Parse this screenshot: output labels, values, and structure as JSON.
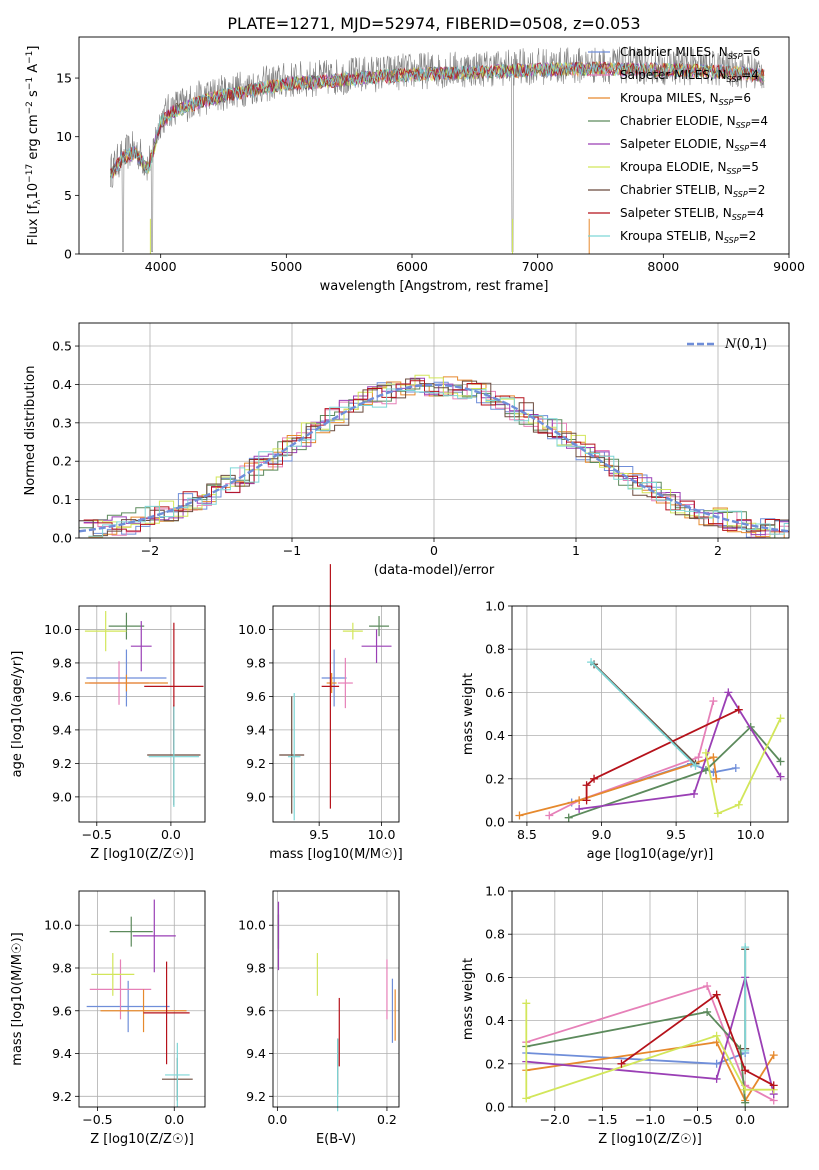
{
  "figure": {
    "title": "PLATE=1271, MJD=52974, FIBERID=0508, z=0.053"
  },
  "colors": {
    "Chabrier MILES": "#6f8ed9",
    "Salpeter MILES": "#e680b8",
    "Kroupa MILES": "#e6892d",
    "Chabrier ELODIE": "#5c8a5c",
    "Salpeter ELODIE": "#9a3fb5",
    "Kroupa ELODIE": "#d2e65a",
    "Chabrier STELIB": "#6b4b3e",
    "Salpeter STELIB": "#b5121b",
    "Kroupa STELIB": "#7dd6d6",
    "data": "#808080"
  },
  "chart_data": [
    {
      "id": "spectrum",
      "type": "line",
      "xlabel": "wavelength [Angstrom, rest frame]",
      "ylabel": "Flux [f_λ 10^-17 erg cm^-2 s^-1 A^-1]",
      "xlim": [
        3350,
        9000
      ],
      "ylim": [
        0,
        18.5
      ],
      "xticks": [
        4000,
        5000,
        6000,
        7000,
        8000,
        9000
      ],
      "yticks": [
        0,
        5,
        10,
        15
      ],
      "grid": false,
      "legend_position": "right",
      "legend": [
        {
          "model": "Chabrier MILES",
          "nssp": "6"
        },
        {
          "model": "Salpeter MILES",
          "nssp": "4"
        },
        {
          "model": "Kroupa MILES",
          "nssp": "6"
        },
        {
          "model": "Chabrier ELODIE",
          "nssp": "4"
        },
        {
          "model": "Salpeter ELODIE",
          "nssp": "4"
        },
        {
          "model": "Kroupa ELODIE",
          "nssp": "5"
        },
        {
          "model": "Chabrier STELIB",
          "nssp": "2"
        },
        {
          "model": "Salpeter STELIB",
          "nssp": "4"
        },
        {
          "model": "Kroupa STELIB",
          "nssp": "2"
        }
      ],
      "continuum": {
        "x": [
          3600,
          3700,
          3800,
          3900,
          4000,
          4100,
          4200,
          4300,
          4500,
          4700,
          5000,
          5300,
          5600,
          6000,
          6500,
          7000,
          7500,
          8000,
          8500,
          8800
        ],
        "y": [
          7.0,
          8.5,
          9.0,
          7.5,
          11.5,
          12.5,
          12.8,
          13.2,
          13.8,
          14.2,
          14.8,
          15.0,
          15.3,
          15.6,
          15.8,
          16.0,
          16.1,
          16.0,
          15.8,
          15.5
        ]
      }
    },
    {
      "id": "residuals",
      "type": "area",
      "xlabel": "(data-model)/error",
      "ylabel": "Normed distribution",
      "xlim": [
        -2.5,
        2.5
      ],
      "ylim": [
        0,
        0.56
      ],
      "xticks": [
        -2,
        -1,
        0,
        1,
        2
      ],
      "yticks": [
        0.0,
        0.1,
        0.2,
        0.3,
        0.4,
        0.5
      ],
      "grid": true,
      "legend_position": "top-right",
      "legend": "N(0,1)"
    },
    {
      "id": "age-vs-Z",
      "type": "scatter",
      "xlabel": "Z [log10(Z/Z☉)]",
      "ylabel": "age  [log10(age/yr)]",
      "xlim": [
        -0.62,
        0.23
      ],
      "ylim": [
        8.85,
        10.14
      ],
      "xticks": [
        -0.5,
        0.0
      ],
      "yticks": [
        9.0,
        9.2,
        9.4,
        9.6,
        9.8,
        10.0
      ],
      "grid": true,
      "points": [
        {
          "model": "Chabrier MILES",
          "x": -0.3,
          "xerr": 0.27,
          "y": 9.71,
          "yerr": 0.17
        },
        {
          "model": "Salpeter MILES",
          "x": -0.35,
          "xerr": 0.2,
          "y": 9.68,
          "yerr": 0.13
        },
        {
          "model": "Kroupa MILES",
          "x": -0.3,
          "xerr": 0.28,
          "y": 9.68,
          "yerr": 0.05
        },
        {
          "model": "Chabrier ELODIE",
          "x": -0.3,
          "xerr": 0.12,
          "y": 10.02,
          "yerr": 0.08
        },
        {
          "model": "Salpeter ELODIE",
          "x": -0.2,
          "xerr": 0.07,
          "y": 9.9,
          "yerr": 0.15
        },
        {
          "model": "Kroupa ELODIE",
          "x": -0.44,
          "xerr": 0.14,
          "y": 9.99,
          "yerr": 0.12
        },
        {
          "model": "Chabrier STELIB",
          "x": 0.02,
          "xerr": 0.18,
          "y": 9.25,
          "yerr": 0.3
        },
        {
          "model": "Salpeter STELIB",
          "x": 0.02,
          "xerr": 0.2,
          "y": 9.66,
          "yerr": 0.38
        },
        {
          "model": "Kroupa STELIB",
          "x": 0.02,
          "xerr": 0.17,
          "y": 9.24,
          "yerr": 0.3
        }
      ]
    },
    {
      "id": "age-vs-mass",
      "type": "scatter",
      "xlabel": "mass [log10(M/M☉)]",
      "ylabel": "",
      "xlim": [
        9.13,
        10.14
      ],
      "ylim": [
        8.85,
        10.14
      ],
      "xticks": [
        9.5,
        10.0
      ],
      "yticks": [
        9.0,
        9.2,
        9.4,
        9.6,
        9.8,
        10.0
      ],
      "grid": true,
      "points": [
        {
          "model": "Chabrier MILES",
          "x": 9.62,
          "xerr": 0.1,
          "y": 9.71,
          "yerr": 0.17
        },
        {
          "model": "Salpeter MILES",
          "x": 9.71,
          "xerr": 0.06,
          "y": 9.68,
          "yerr": 0.15
        },
        {
          "model": "Kroupa MILES",
          "x": 9.6,
          "xerr": 0.04,
          "y": 9.68,
          "yerr": 0.06
        },
        {
          "model": "Chabrier ELODIE",
          "x": 9.98,
          "xerr": 0.08,
          "y": 10.02,
          "yerr": 0.06
        },
        {
          "model": "Salpeter ELODIE",
          "x": 9.96,
          "xerr": 0.12,
          "y": 9.9,
          "yerr": 0.1
        },
        {
          "model": "Kroupa ELODIE",
          "x": 9.77,
          "xerr": 0.08,
          "y": 9.99,
          "yerr": 0.05
        },
        {
          "model": "Chabrier STELIB",
          "x": 9.28,
          "xerr": 0.1,
          "y": 9.25,
          "yerr": 0.35
        },
        {
          "model": "Salpeter STELIB",
          "x": 9.59,
          "xerr": 0.07,
          "y": 9.66,
          "yerr": 0.73
        },
        {
          "model": "Kroupa STELIB",
          "x": 9.3,
          "xerr": 0.05,
          "y": 9.24,
          "yerr": 0.38
        }
      ]
    },
    {
      "id": "massweight-vs-age",
      "type": "line",
      "xlabel": "age  [log10(age/yr)]",
      "ylabel": "mass weight",
      "xlim": [
        8.4,
        10.25
      ],
      "ylim": [
        0,
        1
      ],
      "xticks": [
        8.5,
        9.0,
        9.5,
        10.0
      ],
      "yticks": [
        0.0,
        0.2,
        0.4,
        0.6,
        0.8,
        1.0
      ],
      "grid": true,
      "series": [
        {
          "model": "Chabrier MILES",
          "x": [
            8.8,
            9.6,
            9.75,
            9.9
          ],
          "y": [
            0.09,
            0.27,
            0.23,
            0.25
          ]
        },
        {
          "model": "Salpeter MILES",
          "x": [
            8.65,
            8.85,
            9.65,
            9.75
          ],
          "y": [
            0.03,
            0.1,
            0.3,
            0.56
          ]
        },
        {
          "model": "Kroupa MILES",
          "x": [
            8.45,
            8.85,
            9.75,
            9.77
          ],
          "y": [
            0.03,
            0.1,
            0.3,
            0.2
          ]
        },
        {
          "model": "Chabrier ELODIE",
          "x": [
            8.78,
            9.7,
            10.0,
            10.2
          ],
          "y": [
            0.02,
            0.24,
            0.44,
            0.28
          ]
        },
        {
          "model": "Salpeter ELODIE",
          "x": [
            8.85,
            9.62,
            9.85,
            10.2
          ],
          "y": [
            0.06,
            0.13,
            0.6,
            0.21
          ]
        },
        {
          "model": "Kroupa ELODIE",
          "x": [
            9.7,
            9.78,
            9.92,
            10.2
          ],
          "y": [
            0.32,
            0.04,
            0.08,
            0.48
          ]
        },
        {
          "model": "Chabrier STELIB",
          "x": [
            8.95,
            9.63
          ],
          "y": [
            0.73,
            0.27
          ]
        },
        {
          "model": "Salpeter STELIB",
          "x": [
            8.9,
            8.9,
            8.95,
            9.92
          ],
          "y": [
            0.1,
            0.17,
            0.2,
            0.52
          ]
        },
        {
          "model": "Kroupa STELIB",
          "x": [
            8.93,
            9.63
          ],
          "y": [
            0.74,
            0.26
          ]
        }
      ]
    },
    {
      "id": "mass-vs-Z",
      "type": "scatter",
      "xlabel": "Z [log10(Z/Z☉)]",
      "ylabel": "mass [log10(M/M☉)]",
      "xlim": [
        -0.62,
        0.2
      ],
      "ylim": [
        9.15,
        10.16
      ],
      "xticks": [
        -0.5,
        0.0
      ],
      "yticks": [
        9.2,
        9.4,
        9.6,
        9.8,
        10.0
      ],
      "grid": true,
      "points": [
        {
          "model": "Chabrier MILES",
          "x": -0.3,
          "xerr": 0.27,
          "y": 9.62,
          "yerr": 0.12
        },
        {
          "model": "Salpeter MILES",
          "x": -0.35,
          "xerr": 0.2,
          "y": 9.7,
          "yerr": 0.14
        },
        {
          "model": "Kroupa MILES",
          "x": -0.2,
          "xerr": 0.28,
          "y": 9.6,
          "yerr": 0.1
        },
        {
          "model": "Chabrier ELODIE",
          "x": -0.28,
          "xerr": 0.14,
          "y": 9.97,
          "yerr": 0.07
        },
        {
          "model": "Salpeter ELODIE",
          "x": -0.13,
          "xerr": 0.14,
          "y": 9.95,
          "yerr": 0.17
        },
        {
          "model": "Kroupa ELODIE",
          "x": -0.4,
          "xerr": 0.14,
          "y": 9.77,
          "yerr": 0.1
        },
        {
          "model": "Chabrier STELIB",
          "x": 0.02,
          "xerr": 0.1,
          "y": 9.28,
          "yerr": 0.1
        },
        {
          "model": "Salpeter STELIB",
          "x": -0.05,
          "xerr": 0.15,
          "y": 9.59,
          "yerr": 0.24
        },
        {
          "model": "Kroupa STELIB",
          "x": 0.02,
          "xerr": 0.08,
          "y": 9.3,
          "yerr": 0.15
        }
      ]
    },
    {
      "id": "mass-vs-ebv",
      "type": "scatter",
      "xlabel": "E(B-V)",
      "ylabel": "",
      "xlim": [
        -0.008,
        0.222
      ],
      "ylim": [
        9.15,
        10.16
      ],
      "xticks": [
        0.0,
        0.2
      ],
      "yticks": [
        9.2,
        9.4,
        9.6,
        9.8,
        10.0
      ],
      "grid": true,
      "points": [
        {
          "model": "Chabrier MILES",
          "x": 0.21,
          "y": 9.6,
          "yerr": 0.15
        },
        {
          "model": "Salpeter MILES",
          "x": 0.2,
          "y": 9.7,
          "yerr": 0.14
        },
        {
          "model": "Kroupa MILES",
          "x": 0.215,
          "y": 9.58,
          "yerr": 0.12
        },
        {
          "model": "Chabrier ELODIE",
          "x": 0.002,
          "y": 9.97,
          "yerr": 0.08
        },
        {
          "model": "Salpeter ELODIE",
          "x": 0.002,
          "y": 9.95,
          "yerr": 0.16
        },
        {
          "model": "Kroupa ELODIE",
          "x": 0.073,
          "y": 9.77,
          "yerr": 0.1
        },
        {
          "model": "Chabrier STELIB",
          "x": 0.11,
          "y": 9.34,
          "yerr": 0.13
        },
        {
          "model": "Salpeter STELIB",
          "x": 0.113,
          "y": 9.5,
          "yerr": 0.16
        },
        {
          "model": "Kroupa STELIB",
          "x": 0.11,
          "y": 9.3,
          "yerr": 0.17
        }
      ]
    },
    {
      "id": "massweight-vs-Z",
      "type": "line",
      "xlabel": "Z [log10(Z/Z☉)]",
      "ylabel": "mass weight",
      "xlim": [
        -2.45,
        0.45
      ],
      "ylim": [
        0,
        1
      ],
      "xticks": [
        -2.0,
        -1.5,
        -1.0,
        -0.5,
        0.0
      ],
      "yticks": [
        0.0,
        0.2,
        0.4,
        0.6,
        0.8,
        1.0
      ],
      "grid": true,
      "series": [
        {
          "model": "Chabrier MILES",
          "x": [
            -2.3,
            -0.3,
            0.0
          ],
          "y": [
            0.25,
            0.2,
            0.25
          ]
        },
        {
          "model": "Salpeter MILES",
          "x": [
            -2.3,
            -0.4,
            0.0,
            0.3
          ],
          "y": [
            0.3,
            0.56,
            0.1,
            0.03
          ]
        },
        {
          "model": "Kroupa MILES",
          "x": [
            -2.3,
            -0.3,
            0.0,
            0.3
          ],
          "y": [
            0.17,
            0.3,
            0.03,
            0.24
          ]
        },
        {
          "model": "Chabrier ELODIE",
          "x": [
            -2.3,
            -0.4,
            -0.05,
            0.0
          ],
          "y": [
            0.28,
            0.44,
            0.27,
            0.02
          ]
        },
        {
          "model": "Salpeter ELODIE",
          "x": [
            -2.3,
            -0.3,
            0.0,
            0.3
          ],
          "y": [
            0.21,
            0.13,
            0.6,
            0.06
          ]
        },
        {
          "model": "Kroupa ELODIE",
          "x": [
            -2.3,
            -2.3,
            -0.3,
            0.0,
            0.3
          ],
          "y": [
            0.48,
            0.04,
            0.33,
            0.08,
            0.08
          ]
        },
        {
          "model": "Chabrier STELIB",
          "x": [
            0.0,
            0.0
          ],
          "y": [
            0.73,
            0.27
          ]
        },
        {
          "model": "Salpeter STELIB",
          "x": [
            -1.3,
            -0.3,
            0.0,
            0.3
          ],
          "y": [
            0.2,
            0.52,
            0.17,
            0.1
          ]
        },
        {
          "model": "Kroupa STELIB",
          "x": [
            0.0,
            0.0
          ],
          "y": [
            0.74,
            0.26
          ]
        }
      ]
    }
  ]
}
